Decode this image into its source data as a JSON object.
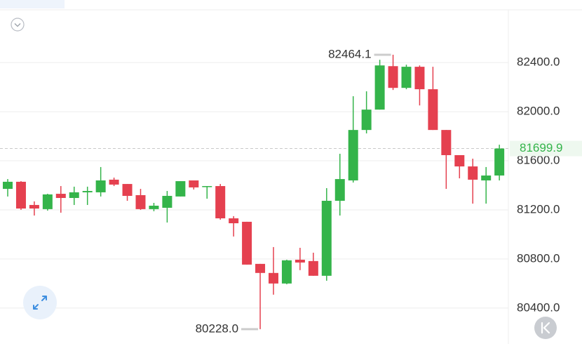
{
  "chart_data": {
    "type": "candlestick",
    "up_color": "#34b44a",
    "down_color": "#e5404f",
    "ylim": [
      80130,
      82830
    ],
    "yticks": [
      {
        "value": 80400,
        "label": "80400.0"
      },
      {
        "value": 80800,
        "label": "80800.0"
      },
      {
        "value": 81200,
        "label": "81200.0"
      },
      {
        "value": 81600,
        "label": "81600.0"
      },
      {
        "value": 82000,
        "label": "82000.0"
      },
      {
        "value": 82400,
        "label": "82400.0"
      }
    ],
    "grid": true,
    "open": [
      81371,
      81429,
      81240,
      81206,
      81331,
      81297,
      81343,
      81343,
      81446,
      81411,
      81320,
      81206,
      81217,
      81309,
      81440,
      81389,
      81394,
      81131,
      81103,
      80760,
      80686,
      80600,
      80794,
      80783,
      80663,
      81274,
      81440,
      81851,
      82017,
      82371,
      82194,
      82366,
      82183,
      81851,
      81646,
      81554,
      81440,
      81480
    ],
    "high": [
      81451,
      81434,
      81269,
      81331,
      81394,
      81389,
      81389,
      81549,
      81463,
      81411,
      81371,
      81257,
      81354,
      81434,
      81440,
      81394,
      81411,
      81149,
      81103,
      80760,
      80897,
      80794,
      80891,
      80851,
      81377,
      81657,
      82126,
      82166,
      82423,
      82464.1,
      82383,
      82377,
      82366,
      81851,
      81646,
      81617,
      81549,
      81731
    ],
    "low": [
      81309,
      81200,
      81154,
      81194,
      81177,
      81240,
      81240,
      81309,
      81394,
      81274,
      81200,
      81189,
      81097,
      81309,
      81366,
      81291,
      81120,
      80983,
      80754,
      80228,
      80509,
      80594,
      80709,
      80663,
      80623,
      81154,
      81423,
      81823,
      82017,
      82177,
      82183,
      82051,
      81851,
      81371,
      81457,
      81251,
      81251,
      81440
    ],
    "close": [
      81429,
      81211,
      81211,
      81326,
      81297,
      81343,
      81354,
      81440,
      81406,
      81314,
      81206,
      81234,
      81314,
      81434,
      81383,
      81394,
      81131,
      81091,
      80754,
      80686,
      80600,
      80789,
      80771,
      80663,
      81274,
      81451,
      81851,
      82017,
      82377,
      82194,
      82366,
      82183,
      81851,
      81646,
      81554,
      81446,
      81480,
      81699.9
    ],
    "annotations": [
      {
        "value": 82464.1,
        "label": "82464.1"
      },
      {
        "value": 80228,
        "label": "80228.0"
      }
    ],
    "last_price": {
      "value": 81699.9,
      "label": "81699.9"
    }
  }
}
